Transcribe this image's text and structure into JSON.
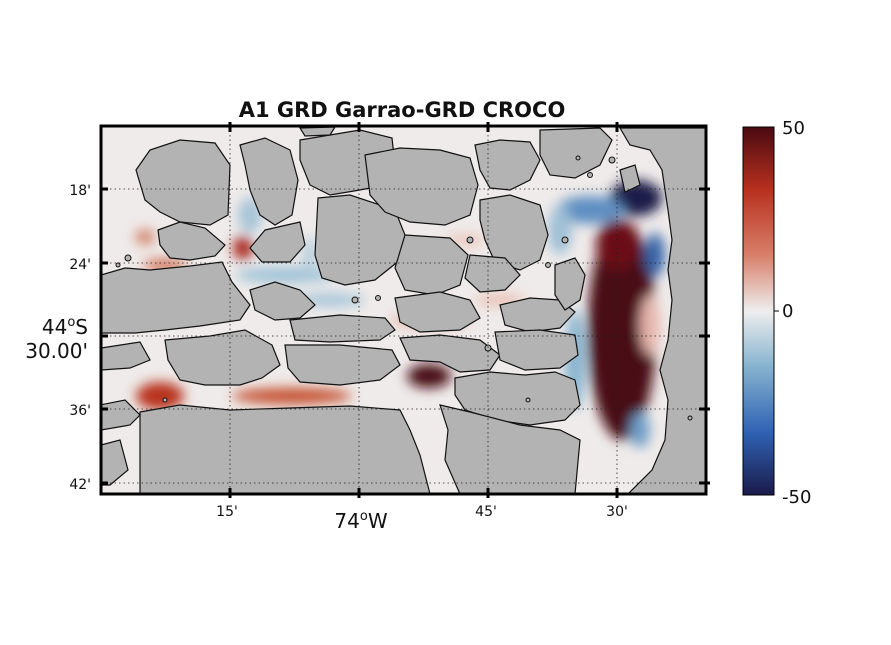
{
  "title": "A1 GRD Garrao-GRD CROCO",
  "axes": {
    "lat_ticks": [
      "18'",
      "24'",
      "30.00'",
      "36'",
      "42'"
    ],
    "lat_degree_label": "44",
    "lat_degree_suffix": "S",
    "lon_ticks": [
      "15'",
      "74",
      "45'",
      "30'"
    ],
    "lon_degree_suffix": "W",
    "grid": true
  },
  "colorbar": {
    "max_label": "50",
    "mid_label": "0",
    "min_label": "-50",
    "colors": [
      "#1a1a4a",
      "#2f62b4",
      "#86b3cf",
      "#eeeeee",
      "#d9806b",
      "#b8301e",
      "#4a0a12"
    ]
  },
  "colors": {
    "land": "#b3b3b3",
    "water_neutral": "#efebea",
    "frame": "#000000"
  }
}
